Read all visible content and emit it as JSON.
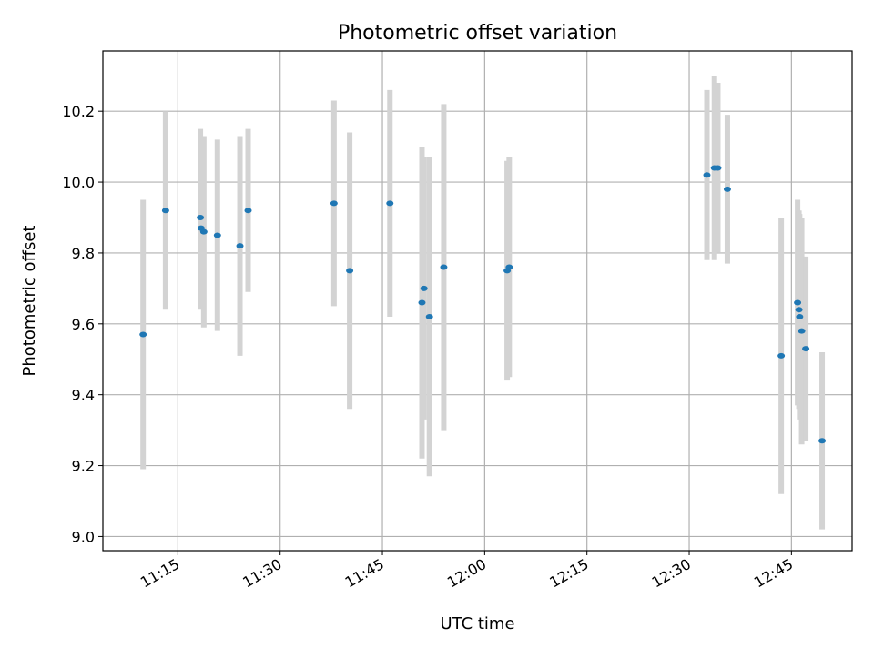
{
  "chart_data": {
    "type": "scatter",
    "title": "Photometric offset variation",
    "xlabel": "UTC time",
    "ylabel": "Photometric offset",
    "x_ticks": [
      "11:15",
      "11:30",
      "11:45",
      "12:00",
      "12:15",
      "12:30",
      "12:45"
    ],
    "y_ticks": [
      "9.0",
      "9.2",
      "9.4",
      "9.6",
      "9.8",
      "10.0",
      "10.2"
    ],
    "xlim": [
      "11:04:00",
      "12:53:54"
    ],
    "ylim": [
      8.96,
      10.37
    ],
    "grid": true,
    "colors": {
      "marker": "#1f77b4",
      "errorbar": "#d3d3d3",
      "grid": "#b0b0b0",
      "axes": "#000000"
    },
    "points": [
      {
        "x": "11:09:54",
        "y": 9.57,
        "yerr": 0.38
      },
      {
        "x": "11:13:12",
        "y": 9.92,
        "yerr": 0.28
      },
      {
        "x": "11:18:18",
        "y": 9.9,
        "yerr": 0.25
      },
      {
        "x": "11:18:24",
        "y": 9.87,
        "yerr": 0.23
      },
      {
        "x": "11:18:48",
        "y": 9.86,
        "yerr": 0.27
      },
      {
        "x": "11:20:48",
        "y": 9.85,
        "yerr": 0.27
      },
      {
        "x": "11:24:06",
        "y": 9.82,
        "yerr": 0.31
      },
      {
        "x": "11:25:18",
        "y": 9.92,
        "yerr": 0.23
      },
      {
        "x": "11:37:54",
        "y": 9.94,
        "yerr": 0.29
      },
      {
        "x": "11:40:12",
        "y": 9.75,
        "yerr": 0.39
      },
      {
        "x": "11:46:06",
        "y": 9.94,
        "yerr": 0.32
      },
      {
        "x": "11:50:48",
        "y": 9.66,
        "yerr": 0.44
      },
      {
        "x": "11:51:06",
        "y": 9.7,
        "yerr": 0.37
      },
      {
        "x": "11:51:54",
        "y": 9.62,
        "yerr": 0.45
      },
      {
        "x": "11:54:00",
        "y": 9.76,
        "yerr": 0.46
      },
      {
        "x": "12:03:18",
        "y": 9.75,
        "yerr": 0.31
      },
      {
        "x": "12:03:36",
        "y": 9.76,
        "yerr": 0.31
      },
      {
        "x": "12:32:36",
        "y": 10.02,
        "yerr": 0.24
      },
      {
        "x": "12:33:42",
        "y": 10.04,
        "yerr": 0.26
      },
      {
        "x": "12:34:12",
        "y": 10.04,
        "yerr": 0.24
      },
      {
        "x": "12:35:36",
        "y": 9.98,
        "yerr": 0.21
      },
      {
        "x": "12:43:30",
        "y": 9.51,
        "yerr": 0.39
      },
      {
        "x": "12:45:54",
        "y": 9.66,
        "yerr": 0.29
      },
      {
        "x": "12:46:06",
        "y": 9.64,
        "yerr": 0.28
      },
      {
        "x": "12:46:12",
        "y": 9.62,
        "yerr": 0.29
      },
      {
        "x": "12:46:30",
        "y": 9.58,
        "yerr": 0.32
      },
      {
        "x": "12:47:06",
        "y": 9.53,
        "yerr": 0.26
      },
      {
        "x": "12:49:30",
        "y": 9.27,
        "yerr": 0.25
      }
    ]
  }
}
